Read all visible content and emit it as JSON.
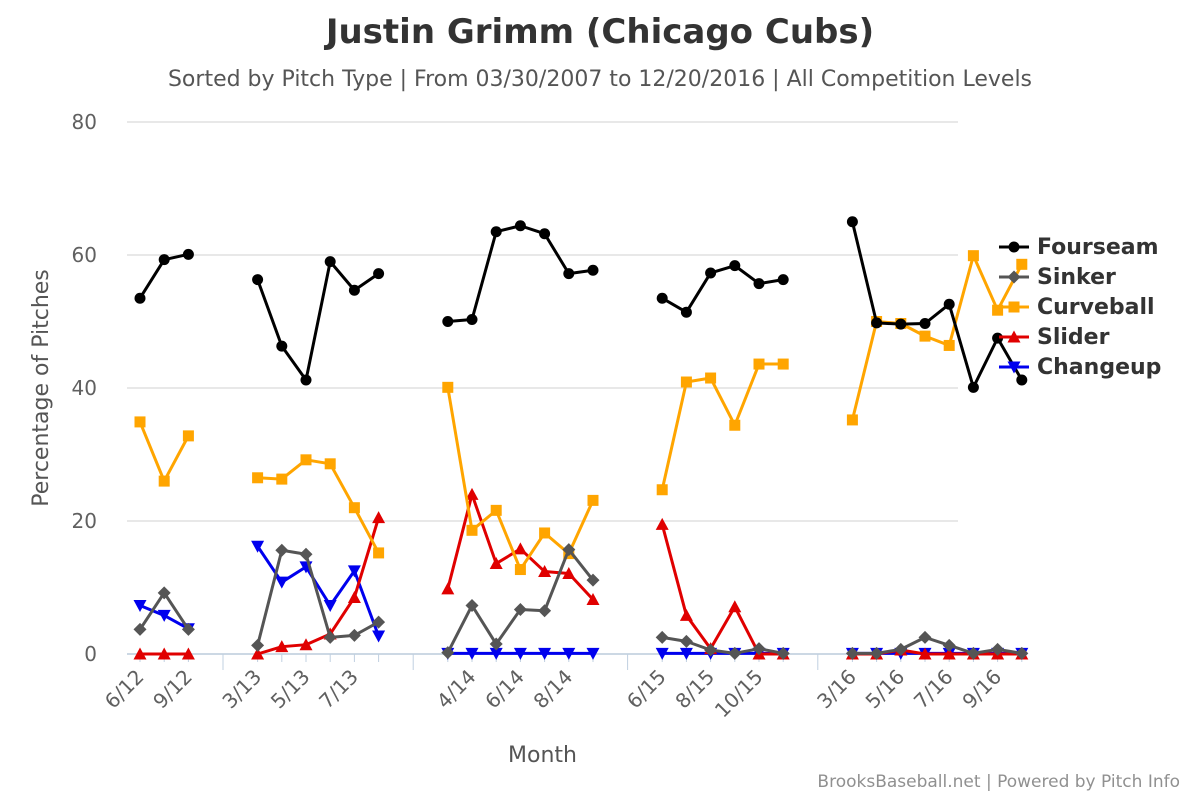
{
  "chart_data": {
    "type": "line",
    "title": "Justin Grimm (Chicago Cubs)",
    "subtitle": "Sorted by Pitch Type | From 03/30/2007 to 12/20/2016 | All Competition Levels",
    "xlabel": "Month",
    "ylabel": "Percentage of Pitches",
    "ylim": [
      0,
      80
    ],
    "yticks": [
      0,
      20,
      40,
      60,
      80
    ],
    "grid": true,
    "legend_position": "right",
    "x_tick_labels": [
      "6/12",
      "9/12",
      "3/13",
      "5/13",
      "7/13",
      "4/14",
      "6/14",
      "8/14",
      "6/15",
      "8/15",
      "10/15",
      "3/16",
      "5/16",
      "7/16",
      "9/16"
    ],
    "groups": [
      [
        "6/12",
        "7/12",
        "9/12"
      ],
      [
        "3/13",
        "4/13",
        "5/13",
        "6/13",
        "7/13",
        "8/13"
      ],
      [
        "3/14",
        "4/14",
        "5/14",
        "6/14",
        "7/14",
        "8/14",
        "9/14"
      ],
      [
        "6/15",
        "7/15",
        "8/15",
        "9/15",
        "10/15",
        "11/15"
      ],
      [
        "3/16",
        "4/16",
        "5/16",
        "6/16",
        "7/16",
        "8/16",
        "9/16",
        "10/16"
      ]
    ],
    "series": [
      {
        "name": "Fourseam",
        "color": "#000000",
        "marker": "circle",
        "values": [
          [
            53.5,
            59.3,
            60.1
          ],
          [
            56.3,
            46.3,
            41.2,
            59,
            54.7,
            57.2
          ],
          [
            50,
            50.3,
            63.5,
            64.4,
            63.2,
            57.2,
            57.7
          ],
          [
            53.5,
            51.4,
            57.3,
            58.4,
            55.7,
            56.3
          ],
          [
            65,
            49.8,
            49.6,
            49.7,
            52.6,
            40.1,
            47.5,
            41.2
          ]
        ]
      },
      {
        "name": "Sinker",
        "color": "#555555",
        "marker": "diamond",
        "values": [
          [
            3.7,
            9.2,
            3.7
          ],
          [
            1.3,
            15.6,
            15,
            2.5,
            2.8,
            4.8
          ],
          [
            0.2,
            7.3,
            1.5,
            6.7,
            6.5,
            15.7,
            11.1
          ],
          [
            2.5,
            1.9,
            0.6,
            0.1,
            0.8,
            0.1
          ],
          [
            0.1,
            0.1,
            0.7,
            2.5,
            1.3,
            0.1,
            0.7,
            0.1
          ]
        ]
      },
      {
        "name": "Curveball",
        "color": "#FFA500",
        "marker": "square",
        "values": [
          [
            34.9,
            26,
            32.8
          ],
          [
            26.5,
            26.3,
            29.2,
            28.6,
            22,
            15.2
          ],
          [
            40.1,
            18.6,
            21.6,
            12.7,
            18.2,
            15.1,
            23.1
          ],
          [
            24.7,
            40.9,
            41.5,
            34.4,
            43.6,
            43.6
          ],
          [
            35.2,
            50,
            49.7,
            47.8,
            46.4,
            59.9,
            51.7,
            58.6
          ]
        ]
      },
      {
        "name": "Slider",
        "color": "#E00000",
        "marker": "triangle-up",
        "values": [
          [
            0,
            0,
            0
          ],
          [
            0,
            1.1,
            1.4,
            3,
            8.5,
            20.5
          ],
          [
            9.8,
            24,
            13.6,
            15.8,
            12.4,
            12.1,
            8.2
          ],
          [
            19.5,
            5.8,
            0.8,
            7.1,
            0,
            0
          ],
          [
            0,
            0,
            0.6,
            0,
            0,
            0,
            0,
            0
          ]
        ]
      },
      {
        "name": "Changeup",
        "color": "#0000EE",
        "marker": "triangle-down",
        "values": [
          [
            7.3,
            5.8,
            3.8
          ],
          [
            16.2,
            10.8,
            13.1,
            7.3,
            12.5,
            2.7
          ],
          [
            0.1,
            0.1,
            0.1,
            0.1,
            0.1,
            0.1,
            0.1
          ],
          [
            0.1,
            0.1,
            0.1,
            0.1,
            0.1,
            0.1
          ],
          [
            0.1,
            0.1,
            0.1,
            0.1,
            0.1,
            0.1,
            0.1,
            0.1
          ]
        ]
      }
    ]
  },
  "credit": "BrooksBaseball.net | Powered by Pitch Info"
}
